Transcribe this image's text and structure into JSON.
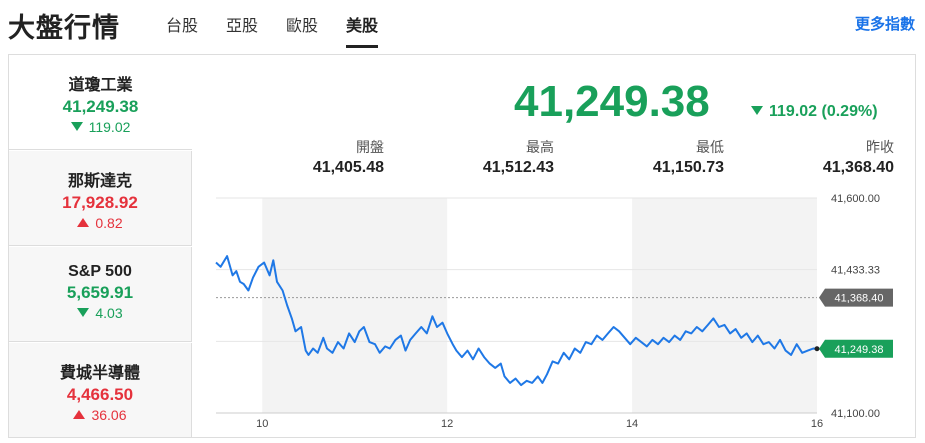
{
  "header": {
    "title": "大盤行情",
    "tabs": [
      "台股",
      "亞股",
      "歐股",
      "美股"
    ],
    "active_tab": 3,
    "more_link": "更多指數"
  },
  "sidebar": {
    "items": [
      {
        "name": "道瓊工業",
        "value": "41,249.38",
        "change": "119.02",
        "direction": "down"
      },
      {
        "name": "那斯達克",
        "value": "17,928.92",
        "change": "0.82",
        "direction": "up"
      },
      {
        "name": "S&P 500",
        "value": "5,659.91",
        "change": "4.03",
        "direction": "down"
      },
      {
        "name": "費城半導體",
        "value": "4,466.50",
        "change": "36.06",
        "direction": "up"
      }
    ]
  },
  "main": {
    "price": "41,249.38",
    "change": "119.02 (0.29%)",
    "stats": [
      {
        "label": "開盤",
        "value": "41,405.48"
      },
      {
        "label": "最高",
        "value": "41,512.43"
      },
      {
        "label": "最低",
        "value": "41,150.73"
      },
      {
        "label": "昨收",
        "value": "41,368.40"
      }
    ]
  },
  "colors": {
    "up": "#e5323c",
    "down": "#19a05a",
    "line": "#1f78e6",
    "link": "#1a73e8"
  },
  "chart_data": {
    "type": "line",
    "x_ticks": [
      "10",
      "12",
      "14",
      "16"
    ],
    "y_ticks": [
      "41,600.00",
      "41,433.33",
      "41,100.00"
    ],
    "ylim": [
      41100,
      41600
    ],
    "xlim": [
      9.5,
      16
    ],
    "prev_close": 41368.4,
    "prev_close_label": "41,368.40",
    "last_label": "41,249.38",
    "series": [
      {
        "points": [
          [
            9.5,
            41450
          ],
          [
            9.55,
            41440
          ],
          [
            9.62,
            41465
          ],
          [
            9.68,
            41420
          ],
          [
            9.72,
            41430
          ],
          [
            9.76,
            41405
          ],
          [
            9.8,
            41400
          ],
          [
            9.85,
            41385
          ],
          [
            9.9,
            41415
          ],
          [
            9.96,
            41440
          ],
          [
            10.02,
            41450
          ],
          [
            10.08,
            41420
          ],
          [
            10.12,
            41455
          ],
          [
            10.16,
            41405
          ],
          [
            10.22,
            41385
          ],
          [
            10.27,
            41350
          ],
          [
            10.32,
            41320
          ],
          [
            10.36,
            41290
          ],
          [
            10.42,
            41300
          ],
          [
            10.47,
            41245
          ],
          [
            10.5,
            41235
          ],
          [
            10.55,
            41250
          ],
          [
            10.6,
            41240
          ],
          [
            10.66,
            41275
          ],
          [
            10.7,
            41250
          ],
          [
            10.76,
            41240
          ],
          [
            10.82,
            41265
          ],
          [
            10.88,
            41250
          ],
          [
            10.94,
            41285
          ],
          [
            11.0,
            41265
          ],
          [
            11.05,
            41290
          ],
          [
            11.1,
            41300
          ],
          [
            11.16,
            41265
          ],
          [
            11.22,
            41260
          ],
          [
            11.27,
            41240
          ],
          [
            11.33,
            41255
          ],
          [
            11.38,
            41250
          ],
          [
            11.44,
            41270
          ],
          [
            11.5,
            41280
          ],
          [
            11.55,
            41245
          ],
          [
            11.6,
            41270
          ],
          [
            11.66,
            41285
          ],
          [
            11.72,
            41300
          ],
          [
            11.78,
            41285
          ],
          [
            11.84,
            41325
          ],
          [
            11.89,
            41300
          ],
          [
            11.95,
            41310
          ],
          [
            12.0,
            41285
          ],
          [
            12.06,
            41260
          ],
          [
            12.1,
            41245
          ],
          [
            12.16,
            41230
          ],
          [
            12.22,
            41245
          ],
          [
            12.28,
            41225
          ],
          [
            12.34,
            41250
          ],
          [
            12.4,
            41230
          ],
          [
            12.46,
            41215
          ],
          [
            12.52,
            41205
          ],
          [
            12.58,
            41215
          ],
          [
            12.62,
            41185
          ],
          [
            12.68,
            41170
          ],
          [
            12.74,
            41180
          ],
          [
            12.8,
            41165
          ],
          [
            12.86,
            41175
          ],
          [
            12.92,
            41170
          ],
          [
            12.98,
            41185
          ],
          [
            13.03,
            41170
          ],
          [
            13.08,
            41190
          ],
          [
            13.14,
            41220
          ],
          [
            13.2,
            41215
          ],
          [
            13.26,
            41240
          ],
          [
            13.32,
            41225
          ],
          [
            13.38,
            41250
          ],
          [
            13.44,
            41240
          ],
          [
            13.5,
            41265
          ],
          [
            13.56,
            41260
          ],
          [
            13.62,
            41280
          ],
          [
            13.68,
            41270
          ],
          [
            13.74,
            41285
          ],
          [
            13.8,
            41300
          ],
          [
            13.86,
            41290
          ],
          [
            13.92,
            41275
          ],
          [
            13.98,
            41260
          ],
          [
            14.04,
            41275
          ],
          [
            14.1,
            41265
          ],
          [
            14.16,
            41255
          ],
          [
            14.22,
            41270
          ],
          [
            14.28,
            41260
          ],
          [
            14.34,
            41275
          ],
          [
            14.4,
            41265
          ],
          [
            14.46,
            41280
          ],
          [
            14.52,
            41270
          ],
          [
            14.58,
            41290
          ],
          [
            14.64,
            41285
          ],
          [
            14.7,
            41300
          ],
          [
            14.76,
            41290
          ],
          [
            14.82,
            41305
          ],
          [
            14.88,
            41320
          ],
          [
            14.94,
            41300
          ],
          [
            15.0,
            41305
          ],
          [
            15.06,
            41285
          ],
          [
            15.12,
            41295
          ],
          [
            15.18,
            41275
          ],
          [
            15.24,
            41285
          ],
          [
            15.3,
            41265
          ],
          [
            15.36,
            41280
          ],
          [
            15.42,
            41260
          ],
          [
            15.48,
            41265
          ],
          [
            15.54,
            41250
          ],
          [
            15.6,
            41270
          ],
          [
            15.66,
            41245
          ],
          [
            15.72,
            41235
          ],
          [
            15.78,
            41260
          ],
          [
            15.84,
            41240
          ],
          [
            15.9,
            41245
          ],
          [
            15.96,
            41250
          ],
          [
            16.0,
            41249.38
          ]
        ]
      }
    ]
  }
}
